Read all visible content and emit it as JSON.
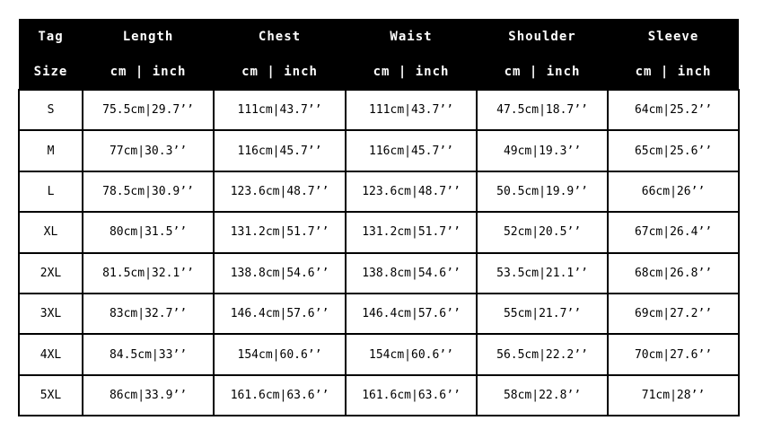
{
  "colors": {
    "header_bg": "#000000",
    "header_text": "#ffffff",
    "body_bg": "#ffffff",
    "border": "#000000",
    "page_bg": "#ffffff"
  },
  "chart_data": {
    "type": "table",
    "header": {
      "tag": "Tag",
      "size": "Size",
      "measurements": [
        {
          "label": "Length",
          "units": "cm | inch"
        },
        {
          "label": "Chest",
          "units": "cm | inch"
        },
        {
          "label": "Waist",
          "units": "cm | inch"
        },
        {
          "label": "Shoulder",
          "units": "cm | inch"
        },
        {
          "label": "Sleeve",
          "units": "cm | inch"
        }
      ]
    },
    "rows": [
      {
        "size": "S",
        "length": "75.5cm|29.7’’",
        "chest": "111cm|43.7’’",
        "waist": "111cm|43.7’’",
        "shoulder": "47.5cm|18.7’’",
        "sleeve": "64cm|25.2’’"
      },
      {
        "size": "M",
        "length": "77cm|30.3’’",
        "chest": "116cm|45.7’’",
        "waist": "116cm|45.7’’",
        "shoulder": "49cm|19.3’’",
        "sleeve": "65cm|25.6’’"
      },
      {
        "size": "L",
        "length": "78.5cm|30.9’’",
        "chest": "123.6cm|48.7’’",
        "waist": "123.6cm|48.7’’",
        "shoulder": "50.5cm|19.9’’",
        "sleeve": "66cm|26’’"
      },
      {
        "size": "XL",
        "length": "80cm|31.5’’",
        "chest": "131.2cm|51.7’’",
        "waist": "131.2cm|51.7’’",
        "shoulder": "52cm|20.5’’",
        "sleeve": "67cm|26.4’’"
      },
      {
        "size": "2XL",
        "length": "81.5cm|32.1’’",
        "chest": "138.8cm|54.6’’",
        "waist": "138.8cm|54.6’’",
        "shoulder": "53.5cm|21.1’’",
        "sleeve": "68cm|26.8’’"
      },
      {
        "size": "3XL",
        "length": "83cm|32.7’’",
        "chest": "146.4cm|57.6’’",
        "waist": "146.4cm|57.6’’",
        "shoulder": "55cm|21.7’’",
        "sleeve": "69cm|27.2’’"
      },
      {
        "size": "4XL",
        "length": "84.5cm|33’’",
        "chest": "154cm|60.6’’",
        "waist": "154cm|60.6’’",
        "shoulder": "56.5cm|22.2’’",
        "sleeve": "70cm|27.6’’"
      },
      {
        "size": "5XL",
        "length": "86cm|33.9’’",
        "chest": "161.6cm|63.6’’",
        "waist": "161.6cm|63.6’’",
        "shoulder": "58cm|22.8’’",
        "sleeve": "71cm|28’’"
      }
    ]
  }
}
